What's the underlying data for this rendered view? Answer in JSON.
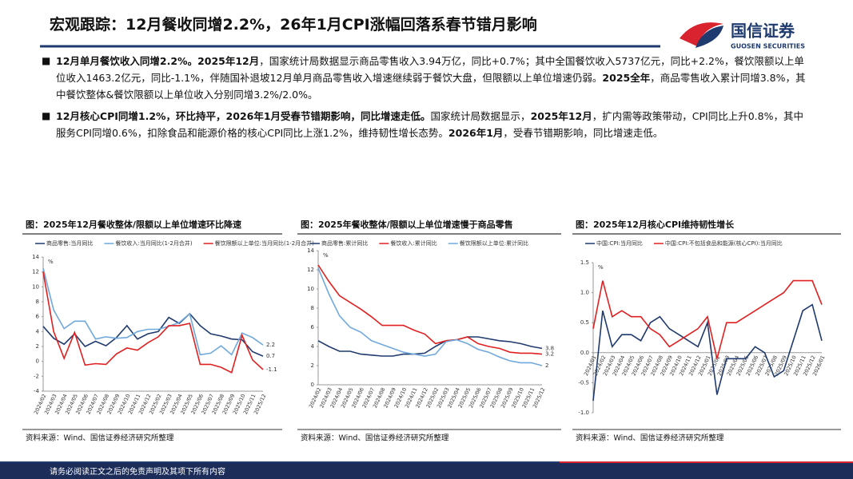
{
  "header": {
    "title": "宏观跟踪：12月餐收同增2.2%，26年1月CPI涨幅回落系春节错月影响",
    "logo_cn": "国信证券",
    "logo_en": "GUOSEN SECURITIES"
  },
  "bullets": [
    {
      "runs": [
        {
          "text": "12月单月餐饮收入同增2.2%。2025年12月",
          "bold": true
        },
        {
          "text": "，国家统计局数据显示商品零售收入3.94万亿，同比+0.7%；其中全国餐饮收入5737亿元，同比+2.2%，餐饮限额以上单位收入1463.2亿元，同比-1.1%，伴随国补退坡12月单月商品零售收入增速继续弱于餐饮大盘，但限额以上单位增速仍弱。",
          "bold": false
        },
        {
          "text": "2025全年",
          "bold": true
        },
        {
          "text": "，商品零售收入累计同增3.8%，其中餐饮整体&餐饮限额以上单位收入分别同增3.2%/2.0%。",
          "bold": false
        }
      ]
    },
    {
      "runs": [
        {
          "text": "12月核心CPI同增1.2%，环比持平，2026年1月受春节错期影响，同比增速走低。",
          "bold": true
        },
        {
          "text": "国家统计局数据显示，",
          "bold": false
        },
        {
          "text": "2025年12月",
          "bold": true
        },
        {
          "text": "，扩内需等政策带动，CPI同比上升0.8%，其中服务CPI同增0.6%，扣除食品和能源价格的核心CPI同比上涨1.2%，维持韧性增长态势。",
          "bold": false
        },
        {
          "text": "2026年1月",
          "bold": true
        },
        {
          "text": "，受春节错期影响，同比增速走低。",
          "bold": false
        }
      ]
    }
  ],
  "chart_data": [
    {
      "type": "line",
      "title": "图：2025年12月餐收整体/限额以上单位增速环比降速",
      "unit": "%",
      "source": "资料来源：Wind、国信证券经济研究所整理",
      "categories": [
        "2024/02",
        "2024/03",
        "2024/04",
        "2024/05",
        "2024/06",
        "2024/07",
        "2024/08",
        "2024/09",
        "2024/10",
        "2024/11",
        "2024/12",
        "2025/02",
        "2025/03",
        "2025/04",
        "2025/05",
        "2025/06",
        "2025/07",
        "2025/08",
        "2025/09",
        "2025/10",
        "2025/11",
        "2025/12"
      ],
      "series": [
        {
          "name": "商品零售:当月同比",
          "color": "#1f3a6e",
          "values": [
            4.7,
            3.1,
            2.3,
            3.7,
            2.0,
            2.7,
            2.1,
            3.2,
            4.8,
            3.0,
            3.7,
            4.0,
            5.9,
            5.1,
            6.4,
            4.8,
            3.7,
            3.4,
            3.0,
            2.9,
            1.3,
            0.7
          ]
        },
        {
          "name": "餐饮收入:当月同比(1-2月合并)",
          "color": "#6fa8dc",
          "values": [
            12.5,
            6.9,
            4.4,
            5.4,
            5.4,
            3.0,
            3.3,
            3.1,
            3.2,
            4.0,
            4.3,
            4.3,
            4.7,
            5.2,
            6.4,
            0.9,
            1.1,
            2.1,
            0.9,
            3.8,
            3.2,
            2.2
          ]
        },
        {
          "name": "餐饮限额以上单位:当月同比(1-2月合并)",
          "color": "#e02020",
          "values": [
            12.0,
            4.0,
            0.4,
            3.9,
            -0.5,
            -0.3,
            -0.4,
            1.0,
            1.8,
            1.5,
            2.5,
            3.3,
            4.8,
            4.8,
            5.1,
            -0.4,
            -0.4,
            -0.8,
            -1.5,
            3.5,
            0.2,
            -1.1
          ]
        }
      ],
      "ylim": [
        -4,
        14
      ],
      "yticks": [
        -4,
        -2,
        0,
        2,
        4,
        6,
        8,
        10,
        12,
        14
      ],
      "legend": "top",
      "end_labels": true,
      "xaxis_at_zero": false
    },
    {
      "type": "line",
      "title": "图：2025年餐收整体/限额以上单位增速慢于商品零售",
      "unit": "%",
      "source": "资料来源：Wind、国信证券经济研究所整理",
      "categories": [
        "2024/02",
        "2024/03",
        "2024/04",
        "2024/05",
        "2024/06",
        "2024/07",
        "2024/08",
        "2024/09",
        "2024/10",
        "2024/11",
        "2024/12",
        "2025/02",
        "2025/03",
        "2025/04",
        "2025/05",
        "2025/06",
        "2025/07",
        "2025/08",
        "2025/09",
        "2025/10",
        "2025/11",
        "2025/12"
      ],
      "series": [
        {
          "name": "商品零售:累计同比",
          "color": "#1f3a6e",
          "values": [
            4.6,
            4.0,
            3.5,
            3.5,
            3.2,
            3.1,
            3.0,
            3.0,
            3.2,
            3.2,
            3.3,
            4.0,
            4.6,
            4.7,
            5.0,
            5.0,
            4.8,
            4.6,
            4.5,
            4.3,
            4.0,
            3.8
          ]
        },
        {
          "name": "餐饮收入:累计同比",
          "color": "#e02020",
          "values": [
            12.5,
            10.8,
            9.3,
            8.6,
            7.9,
            7.1,
            6.2,
            6.2,
            6.2,
            5.7,
            5.3,
            4.3,
            4.6,
            4.7,
            5.0,
            4.3,
            4.0,
            3.8,
            3.4,
            3.3,
            3.3,
            3.2
          ]
        },
        {
          "name": "餐饮限额以上单位:累计同比",
          "color": "#6fa8dc",
          "values": [
            12.2,
            9.5,
            7.2,
            6.0,
            5.5,
            4.6,
            4.2,
            3.8,
            3.4,
            3.2,
            3.0,
            3.2,
            4.5,
            4.7,
            4.3,
            3.7,
            3.4,
            2.9,
            2.5,
            2.3,
            2.3,
            2.0
          ]
        }
      ],
      "ylim": [
        0,
        14
      ],
      "yticks": [
        0,
        2,
        4,
        6,
        8,
        10,
        12,
        14
      ],
      "legend": "top",
      "end_labels": true,
      "xaxis_at_zero": false
    },
    {
      "type": "line",
      "title": "图：2025年12月核心CPI维持韧性增长",
      "unit": "%",
      "source": "资料来源：Wind、国信证券经济研究所整理",
      "categories": [
        "2024/01",
        "2024/02",
        "2024/03",
        "2024/04",
        "2024/05",
        "2024/06",
        "2024/07",
        "2024/08",
        "2024/09",
        "2024/10",
        "2024/11",
        "2024/12",
        "2025/01",
        "2025/02",
        "2025/03",
        "2025/04",
        "2025/05",
        "2025/06",
        "2025/07",
        "2025/08",
        "2025/09",
        "2025/10",
        "2025/11",
        "2025/12",
        "2026/01"
      ],
      "series": [
        {
          "name": "中国:CPI:当月同比",
          "color": "#1f3a6e",
          "values": [
            -0.8,
            0.7,
            0.1,
            0.3,
            0.3,
            0.2,
            0.5,
            0.6,
            0.4,
            0.3,
            0.2,
            0.1,
            0.5,
            -0.7,
            -0.1,
            -0.1,
            -0.1,
            0.1,
            0.0,
            -0.4,
            -0.3,
            0.2,
            0.7,
            0.8,
            0.2
          ]
        },
        {
          "name": "中国:CPI:不包括食品和能源(核心CPI):当月同比",
          "color": "#e02020",
          "values": [
            0.4,
            1.2,
            0.6,
            0.7,
            0.6,
            0.6,
            0.4,
            0.3,
            0.1,
            0.2,
            0.3,
            0.4,
            0.6,
            -0.1,
            0.5,
            0.5,
            0.6,
            0.7,
            0.8,
            0.9,
            1.0,
            1.2,
            1.2,
            1.2,
            0.8
          ]
        }
      ],
      "ylim": [
        -1.0,
        1.5
      ],
      "yticks": [
        {
          "value": -1.0,
          "label": "-1.0"
        },
        {
          "value": -0.5,
          "label": "-0.5"
        },
        {
          "value": 0,
          "label": "0.0"
        },
        {
          "value": 0.5,
          "label": "0.5"
        },
        {
          "value": 1.0,
          "label": "1.0"
        },
        {
          "value": 1.5,
          "label": "1.5"
        }
      ],
      "legend": "top",
      "end_labels": false,
      "xaxis_at_zero": true
    }
  ],
  "footer": "请务必阅读正文之后的免责声明及其项下所有内容"
}
